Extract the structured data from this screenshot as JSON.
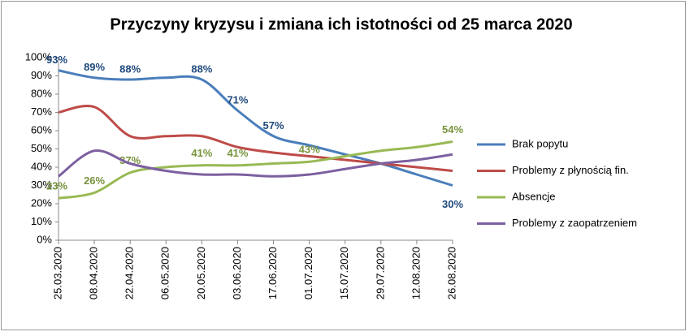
{
  "chart_data": {
    "type": "line",
    "title": "Przyczyny kryzysu i zmiana ich istotności od 25 marca 2020",
    "categories": [
      "25.03.2020",
      "08.04.2020",
      "22.04.2020",
      "06.05.2020",
      "20.05.2020",
      "03.06.2020",
      "17.06.2020",
      "01.07.2020",
      "15.07.2020",
      "29.07.2020",
      "12.08.2020",
      "26.08.2020"
    ],
    "series": [
      {
        "name": "Brak popytu",
        "color": "#4a7ebb",
        "label_color": "#1f497d",
        "values": [
          93,
          89,
          88,
          89,
          88,
          71,
          57,
          52,
          47,
          42,
          36,
          30
        ],
        "value_labels": [
          "93%",
          "89%",
          "88%",
          null,
          "88%",
          "71%",
          "57%",
          null,
          null,
          null,
          null,
          "30%"
        ]
      },
      {
        "name": "Problemy z płynością fin.",
        "color": "#be4b48",
        "values": [
          70,
          73,
          57,
          57,
          57,
          51,
          48,
          46,
          44,
          42,
          40,
          38
        ]
      },
      {
        "name": "Absencje",
        "color": "#98b954",
        "label_color": "#77933c",
        "values": [
          23,
          26,
          37,
          40,
          41,
          41,
          42,
          43,
          46,
          49,
          51,
          54
        ],
        "value_labels": [
          "23%",
          "26%",
          "37%",
          null,
          "41%",
          "41%",
          null,
          "43%",
          null,
          null,
          null,
          "54%"
        ]
      },
      {
        "name": "Problemy z zaopatrzeniem",
        "color": "#7d60a0",
        "values": [
          35,
          49,
          42,
          38,
          36,
          36,
          35,
          36,
          39,
          42,
          44,
          47
        ]
      }
    ],
    "ylim": [
      0,
      100
    ],
    "yticks": [
      {
        "value": 0,
        "label": "0%"
      },
      {
        "value": 10,
        "label": "10%"
      },
      {
        "value": 20,
        "label": "20%"
      },
      {
        "value": 30,
        "label": "30%"
      },
      {
        "value": 40,
        "label": "40%"
      },
      {
        "value": 50,
        "label": "50%"
      },
      {
        "value": 60,
        "label": "60%"
      },
      {
        "value": 70,
        "label": "70%"
      },
      {
        "value": 80,
        "label": "80%"
      },
      {
        "value": 90,
        "label": "90%"
      },
      {
        "value": 100,
        "label": "100%"
      }
    ],
    "legend": "right"
  }
}
